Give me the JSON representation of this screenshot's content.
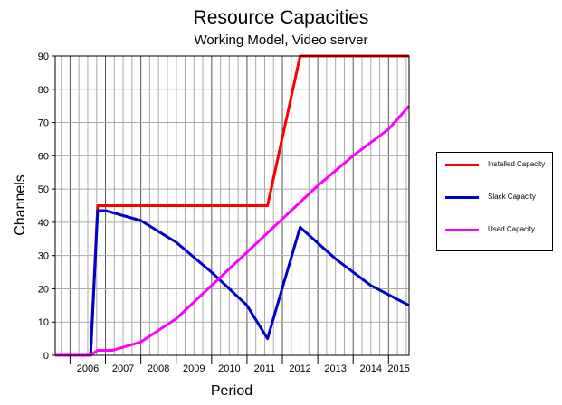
{
  "chart_data": {
    "type": "line",
    "title": "Resource Capacities",
    "subtitle": "Working Model, Video server",
    "xlabel": "Period",
    "ylabel": "Channels",
    "ylim": [
      0,
      90
    ],
    "yticks": [
      0,
      10,
      20,
      30,
      40,
      50,
      60,
      70,
      80,
      90
    ],
    "xlim": [
      2005.58,
      2015.58
    ],
    "xtick_labels": [
      "2006",
      "2007",
      "2008",
      "2009",
      "2010",
      "2011",
      "2012",
      "2013",
      "2014",
      "2015"
    ],
    "grid": true,
    "legend_position": "right",
    "series": [
      {
        "name": "Installed Capacity",
        "color": "#ff0000",
        "x": [
          2005.58,
          2006.58,
          2006.78,
          2011.58,
          2012.5,
          2015.58
        ],
        "y": [
          0,
          0,
          45,
          45,
          90,
          90
        ]
      },
      {
        "name": "Slack Capacity",
        "color": "#0000cc",
        "x": [
          2005.58,
          2006.58,
          2006.78,
          2007.0,
          2008.0,
          2009.0,
          2010.0,
          2011.0,
          2011.58,
          2012.5,
          2013.5,
          2014.5,
          2015.58
        ],
        "y": [
          0,
          0,
          43.5,
          43.5,
          40.5,
          34,
          25,
          15,
          5,
          38.5,
          29,
          21,
          15
        ]
      },
      {
        "name": "Used Capacity",
        "color": "#ff00ff",
        "x": [
          2005.58,
          2006.58,
          2006.78,
          2007.2,
          2008.0,
          2009.0,
          2010.0,
          2011.0,
          2012.0,
          2013.0,
          2014.0,
          2015.0,
          2015.58
        ],
        "y": [
          0,
          0,
          1.5,
          1.5,
          4,
          11,
          21,
          31,
          41,
          51,
          60,
          68,
          75
        ]
      }
    ]
  }
}
